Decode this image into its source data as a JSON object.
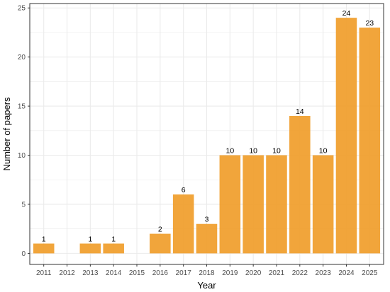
{
  "chart_data": {
    "type": "bar",
    "title": "",
    "xlabel": "Year",
    "ylabel": "Number of papers",
    "categories": [
      "2011",
      "2012",
      "2013",
      "2014",
      "2015",
      "2016",
      "2017",
      "2018",
      "2019",
      "2020",
      "2021",
      "2022",
      "2023",
      "2024",
      "2025"
    ],
    "values": [
      1,
      0,
      1,
      1,
      0,
      2,
      6,
      3,
      10,
      10,
      10,
      14,
      10,
      24,
      23
    ],
    "data_labels": [
      "1",
      "",
      "1",
      "1",
      "",
      "2",
      "6",
      "3",
      "10",
      "10",
      "10",
      "14",
      "10",
      "24",
      "23"
    ],
    "ylim": [
      0,
      25
    ],
    "yticks": [
      0,
      5,
      10,
      15,
      20,
      25
    ],
    "grid": true,
    "legend": "none",
    "bar_color": "#f0a030",
    "panel_border_color": "#333333",
    "grid_color": "#ebebeb"
  }
}
